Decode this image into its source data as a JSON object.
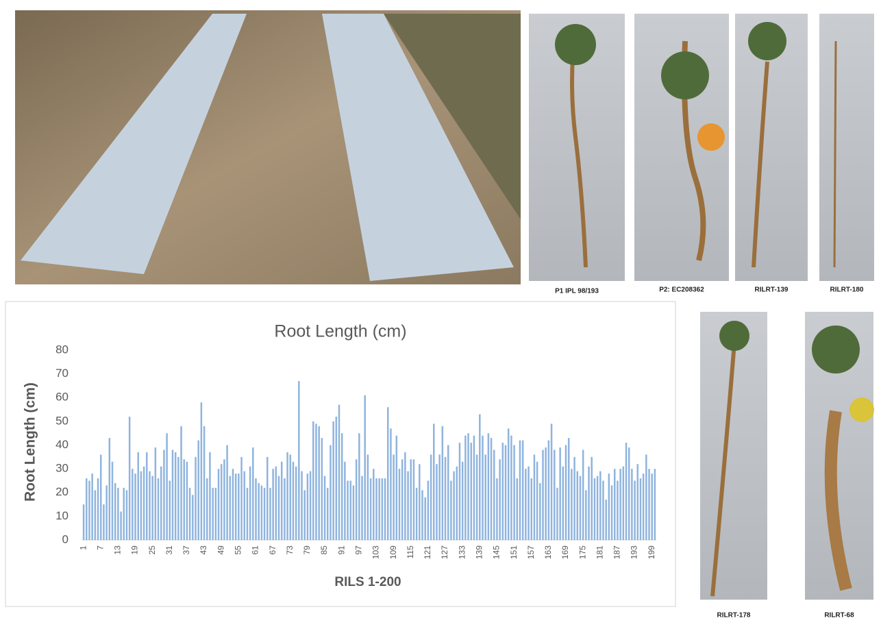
{
  "captions": [
    "P1 IPL 98/193",
    "P2: EC208362",
    "RILRT-139",
    "RILRT-180",
    "RILRT-178",
    "RILRT-68"
  ],
  "chart_data": {
    "type": "bar",
    "title": "Root Length (cm)",
    "y_label": "Root Length (cm)",
    "x_label": "RILS 1-200",
    "color": "#8fb4de",
    "grid": false,
    "ylim": [
      0,
      80
    ],
    "yticks": [
      0,
      10,
      20,
      30,
      40,
      50,
      60,
      70,
      80
    ],
    "categories": [
      "1",
      null,
      null,
      null,
      null,
      null,
      "7",
      null,
      null,
      null,
      null,
      null,
      "13",
      null,
      null,
      null,
      null,
      null,
      "19",
      null,
      null,
      null,
      null,
      null,
      "25",
      null,
      null,
      null,
      null,
      null,
      "31",
      null,
      null,
      null,
      null,
      null,
      "37",
      null,
      null,
      null,
      null,
      null,
      "43",
      null,
      null,
      null,
      null,
      null,
      "49",
      null,
      null,
      null,
      null,
      null,
      "55",
      null,
      null,
      null,
      null,
      null,
      "61",
      null,
      null,
      null,
      null,
      null,
      "67",
      null,
      null,
      null,
      null,
      null,
      "73",
      null,
      null,
      null,
      null,
      null,
      "79",
      null,
      null,
      null,
      null,
      null,
      "85",
      null,
      null,
      null,
      null,
      null,
      "91",
      null,
      null,
      null,
      null,
      null,
      "97",
      null,
      null,
      null,
      null,
      null,
      "103",
      null,
      null,
      null,
      null,
      null,
      "109",
      null,
      null,
      null,
      null,
      null,
      "115",
      null,
      null,
      null,
      null,
      null,
      "121",
      null,
      null,
      null,
      null,
      null,
      "127",
      null,
      null,
      null,
      null,
      null,
      "133",
      null,
      null,
      null,
      null,
      null,
      "139",
      null,
      null,
      null,
      null,
      null,
      "145",
      null,
      null,
      null,
      null,
      null,
      "151",
      null,
      null,
      null,
      null,
      null,
      "157",
      null,
      null,
      null,
      null,
      null,
      "163",
      null,
      null,
      null,
      null,
      null,
      "169",
      null,
      null,
      null,
      null,
      null,
      "175",
      null,
      null,
      null,
      null,
      null,
      "181",
      null,
      null,
      null,
      null,
      null,
      "187",
      null,
      null,
      null,
      null,
      null,
      "193",
      null,
      null,
      null,
      null,
      null,
      "199",
      null
    ],
    "values": [
      15,
      26,
      25,
      28,
      21,
      26,
      36,
      15,
      23,
      43,
      33,
      24,
      22,
      12,
      22,
      21,
      52,
      30,
      28,
      37,
      29,
      31,
      37,
      29,
      27,
      39,
      26,
      31,
      38,
      45,
      25,
      38,
      37,
      35,
      48,
      34,
      33,
      22,
      19,
      35,
      42,
      58,
      48,
      26,
      37,
      22,
      22,
      30,
      32,
      34,
      40,
      27,
      30,
      28,
      28,
      35,
      29,
      22,
      31,
      39,
      26,
      24,
      23,
      22,
      35,
      22,
      30,
      31,
      27,
      33,
      26,
      37,
      36,
      33,
      31,
      67,
      29,
      21,
      28,
      29,
      50,
      49,
      48,
      43,
      27,
      22,
      40,
      50,
      52,
      57,
      45,
      33,
      25,
      25,
      23,
      34,
      45,
      27,
      61,
      36,
      26,
      30,
      26,
      26,
      26,
      26,
      56,
      47,
      36,
      44,
      30,
      34,
      37,
      29,
      34,
      34,
      22,
      32,
      21,
      18,
      25,
      36,
      49,
      32,
      36,
      48,
      35,
      40,
      25,
      29,
      31,
      41,
      33,
      44,
      45,
      41,
      44,
      36,
      53,
      44,
      36,
      45,
      43,
      38,
      26,
      34,
      41,
      40,
      47,
      44,
      40,
      26,
      42,
      42,
      30,
      31,
      26,
      36,
      33,
      24,
      38,
      39,
      42,
      49,
      38,
      22,
      39,
      31,
      40,
      43,
      30,
      35,
      29,
      27,
      38,
      21,
      31,
      35,
      26,
      27,
      29,
      25,
      17,
      28,
      23,
      30,
      25,
      30,
      31,
      41,
      39,
      30,
      25,
      32,
      26,
      28,
      36,
      30,
      28,
      30
    ]
  }
}
